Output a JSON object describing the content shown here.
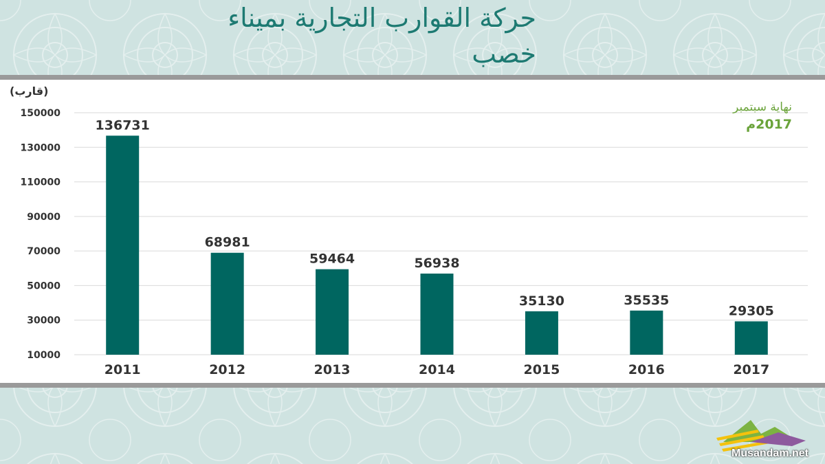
{
  "header": {
    "title_line1": "حركة القوارب التجارية بميناء",
    "title_line2": "خصب"
  },
  "note": {
    "line1": "نهاية سبتمبر",
    "line2": "2017م"
  },
  "logo": {
    "text": "Musandam.net"
  },
  "colors": {
    "bar": "#006660",
    "title": "#1d7a72",
    "note": "#6aa33a",
    "background": "#cfe3e1",
    "band": "#9a9a9a"
  },
  "chart_data": {
    "type": "bar",
    "ylabel": "(قارب)",
    "categories": [
      "2011",
      "2012",
      "2013",
      "2014",
      "2015",
      "2016",
      "2017"
    ],
    "values": [
      136731,
      68981,
      59464,
      56938,
      35130,
      35535,
      29305
    ],
    "ylim": [
      10000,
      150000
    ],
    "yticks": [
      10000,
      30000,
      50000,
      70000,
      90000,
      110000,
      130000,
      150000
    ],
    "grid": true,
    "legend": "none"
  }
}
